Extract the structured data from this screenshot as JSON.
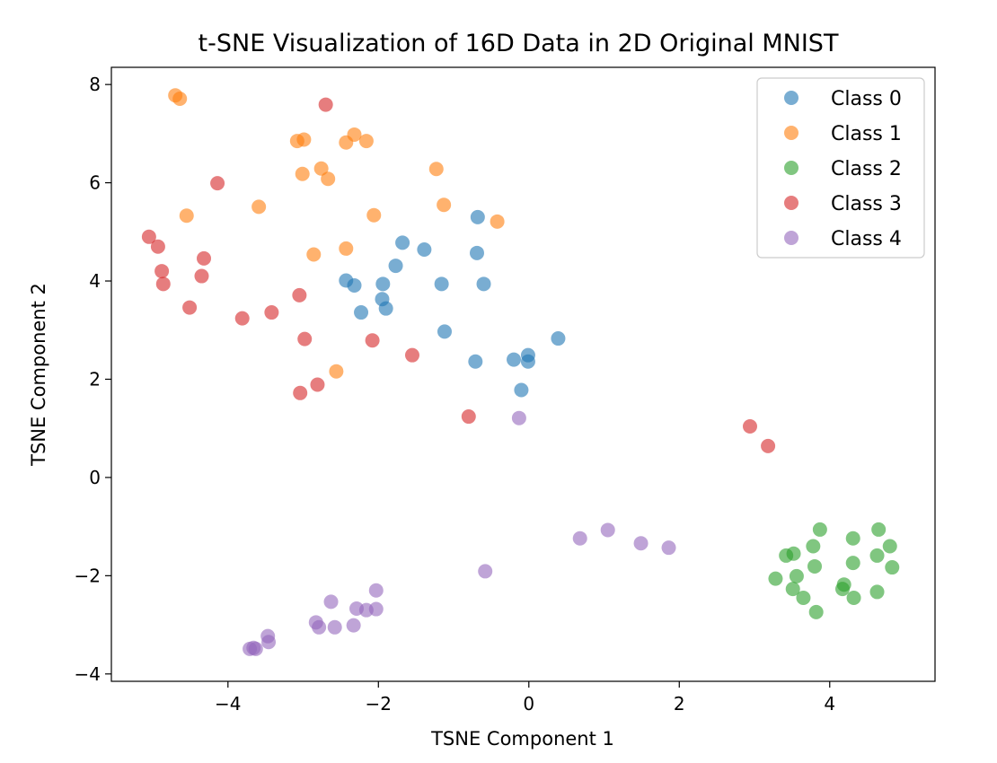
{
  "chart_data": {
    "type": "scatter",
    "title": "t-SNE Visualization of 16D Data in 2D Original MNIST",
    "xlabel": "TSNE Component 1",
    "ylabel": "TSNE Component 2",
    "xlim": [
      -5.55,
      5.4
    ],
    "ylim": [
      -4.15,
      8.35
    ],
    "xticks": [
      -4,
      -2,
      0,
      2,
      4
    ],
    "yticks": [
      -4,
      -2,
      0,
      2,
      4,
      6,
      8
    ],
    "legend_position": "top-right",
    "grid": false,
    "series": [
      {
        "name": "Class 0",
        "color": "#1f77b4",
        "points": [
          [
            -1.68,
            4.78
          ],
          [
            -1.39,
            4.64
          ],
          [
            -0.68,
            5.3
          ],
          [
            -0.69,
            4.57
          ],
          [
            -1.77,
            4.31
          ],
          [
            -2.43,
            4.01
          ],
          [
            -2.32,
            3.91
          ],
          [
            -1.94,
            3.94
          ],
          [
            -1.95,
            3.63
          ],
          [
            -1.9,
            3.44
          ],
          [
            -2.23,
            3.36
          ],
          [
            -1.16,
            3.94
          ],
          [
            -0.6,
            3.94
          ],
          [
            -1.12,
            2.97
          ],
          [
            -0.71,
            2.36
          ],
          [
            -0.2,
            2.4
          ],
          [
            -0.01,
            2.49
          ],
          [
            -0.01,
            2.36
          ],
          [
            0.39,
            2.83
          ],
          [
            -0.1,
            1.78
          ]
        ]
      },
      {
        "name": "Class 1",
        "color": "#ff7f0e",
        "points": [
          [
            -4.7,
            7.78
          ],
          [
            -4.64,
            7.71
          ],
          [
            -3.08,
            6.85
          ],
          [
            -2.99,
            6.88
          ],
          [
            -2.43,
            6.82
          ],
          [
            -2.32,
            6.98
          ],
          [
            -2.16,
            6.85
          ],
          [
            -2.76,
            6.29
          ],
          [
            -2.67,
            6.08
          ],
          [
            -3.01,
            6.18
          ],
          [
            -1.23,
            6.28
          ],
          [
            -1.13,
            5.55
          ],
          [
            -4.55,
            5.33
          ],
          [
            -3.59,
            5.51
          ],
          [
            -2.06,
            5.34
          ],
          [
            -0.42,
            5.21
          ],
          [
            -2.43,
            4.66
          ],
          [
            -2.86,
            4.54
          ],
          [
            -2.56,
            2.16
          ]
        ]
      },
      {
        "name": "Class 2",
        "color": "#2ca02c",
        "points": [
          [
            3.87,
            -1.06
          ],
          [
            4.65,
            -1.06
          ],
          [
            3.78,
            -1.4
          ],
          [
            4.31,
            -1.24
          ],
          [
            4.8,
            -1.4
          ],
          [
            3.42,
            -1.59
          ],
          [
            3.52,
            -1.55
          ],
          [
            4.63,
            -1.59
          ],
          [
            3.8,
            -1.81
          ],
          [
            4.31,
            -1.74
          ],
          [
            4.83,
            -1.83
          ],
          [
            3.28,
            -2.06
          ],
          [
            3.56,
            -2.01
          ],
          [
            4.19,
            -2.18
          ],
          [
            4.17,
            -2.27
          ],
          [
            3.51,
            -2.27
          ],
          [
            3.65,
            -2.45
          ],
          [
            4.32,
            -2.45
          ],
          [
            4.63,
            -2.33
          ],
          [
            3.82,
            -2.74
          ]
        ]
      },
      {
        "name": "Class 3",
        "color": "#d62728",
        "points": [
          [
            -2.7,
            7.59
          ],
          [
            -4.14,
            5.99
          ],
          [
            -5.05,
            4.9
          ],
          [
            -4.93,
            4.7
          ],
          [
            -4.88,
            4.2
          ],
          [
            -4.32,
            4.46
          ],
          [
            -4.86,
            3.94
          ],
          [
            -4.35,
            4.1
          ],
          [
            -3.05,
            3.71
          ],
          [
            -4.51,
            3.46
          ],
          [
            -3.81,
            3.24
          ],
          [
            -3.42,
            3.36
          ],
          [
            -2.98,
            2.82
          ],
          [
            -2.08,
            2.79
          ],
          [
            -1.55,
            2.49
          ],
          [
            -2.81,
            1.89
          ],
          [
            -3.04,
            1.72
          ],
          [
            -0.8,
            1.24
          ],
          [
            2.94,
            1.04
          ],
          [
            3.18,
            0.64
          ]
        ]
      },
      {
        "name": "Class 4",
        "color": "#9467bd",
        "points": [
          [
            -0.13,
            1.21
          ],
          [
            0.68,
            -1.24
          ],
          [
            1.05,
            -1.07
          ],
          [
            1.49,
            -1.34
          ],
          [
            1.86,
            -1.43
          ],
          [
            -0.58,
            -1.91
          ],
          [
            -2.03,
            -2.3
          ],
          [
            -2.63,
            -2.53
          ],
          [
            -2.29,
            -2.67
          ],
          [
            -2.16,
            -2.7
          ],
          [
            -2.03,
            -2.68
          ],
          [
            -2.83,
            -2.95
          ],
          [
            -2.79,
            -3.05
          ],
          [
            -2.58,
            -3.05
          ],
          [
            -2.33,
            -3.01
          ],
          [
            -3.47,
            -3.23
          ],
          [
            -3.46,
            -3.35
          ],
          [
            -3.66,
            -3.47
          ],
          [
            -3.71,
            -3.49
          ],
          [
            -3.63,
            -3.49
          ]
        ]
      }
    ]
  }
}
